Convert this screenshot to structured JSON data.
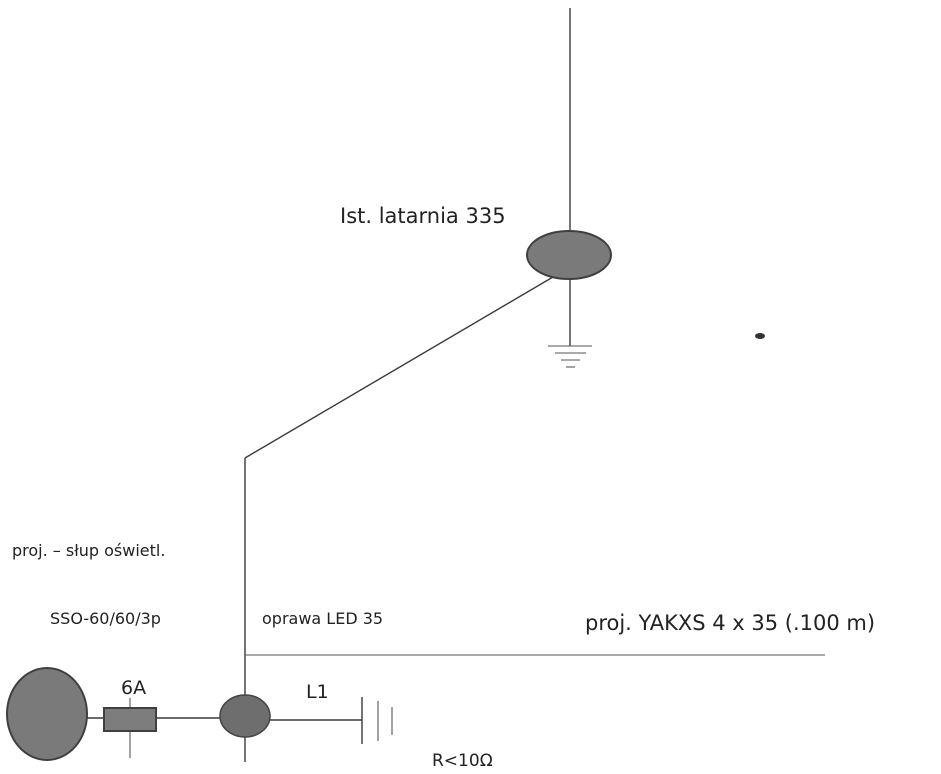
{
  "labels": {
    "existing_lamp": "Ist. latarnia 335",
    "proposed_pole": "proj. – słup oświetl.",
    "pole_type": "SSO-60/60/3p",
    "luminaire": "oprawa LED 35",
    "cable": "proj. YAKXS 4 x 35 (.100 m)",
    "fuse_rating": "6A",
    "phase": "L1",
    "grounding_resistance": "R<10Ω"
  },
  "colors": {
    "line": "#3a3a3a",
    "node_fill": "#7a7a7a",
    "text": "#222222"
  }
}
